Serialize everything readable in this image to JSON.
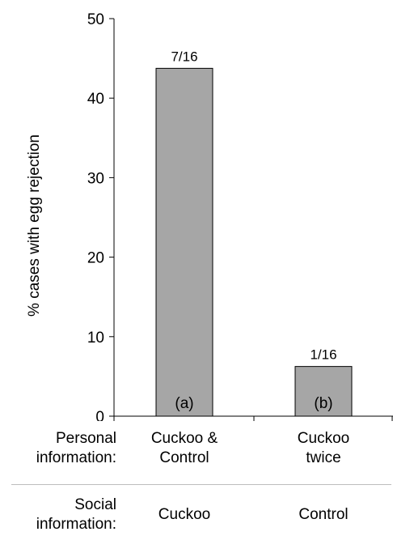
{
  "chart_data": {
    "type": "bar",
    "ylabel": "% cases with egg rejection",
    "ylim": [
      0,
      50
    ],
    "yticks": [
      0,
      10,
      20,
      30,
      40,
      50
    ],
    "categories": [
      "Cuckoo & Control / Cuckoo",
      "Cuckoo twice / Control"
    ],
    "values": [
      43.75,
      6.25
    ],
    "bar_labels": [
      "7/16",
      "1/16"
    ],
    "group_letters": [
      "(a)",
      "(b)"
    ],
    "bar_color": "#a6a6a6",
    "grid": false
  },
  "table": {
    "personal_label": "Personal\ninformation:",
    "social_label": "Social\ninformation:",
    "personal_values": [
      "Cuckoo &\nControl",
      "Cuckoo\ntwice"
    ],
    "social_values": [
      "Cuckoo",
      "Control"
    ]
  }
}
